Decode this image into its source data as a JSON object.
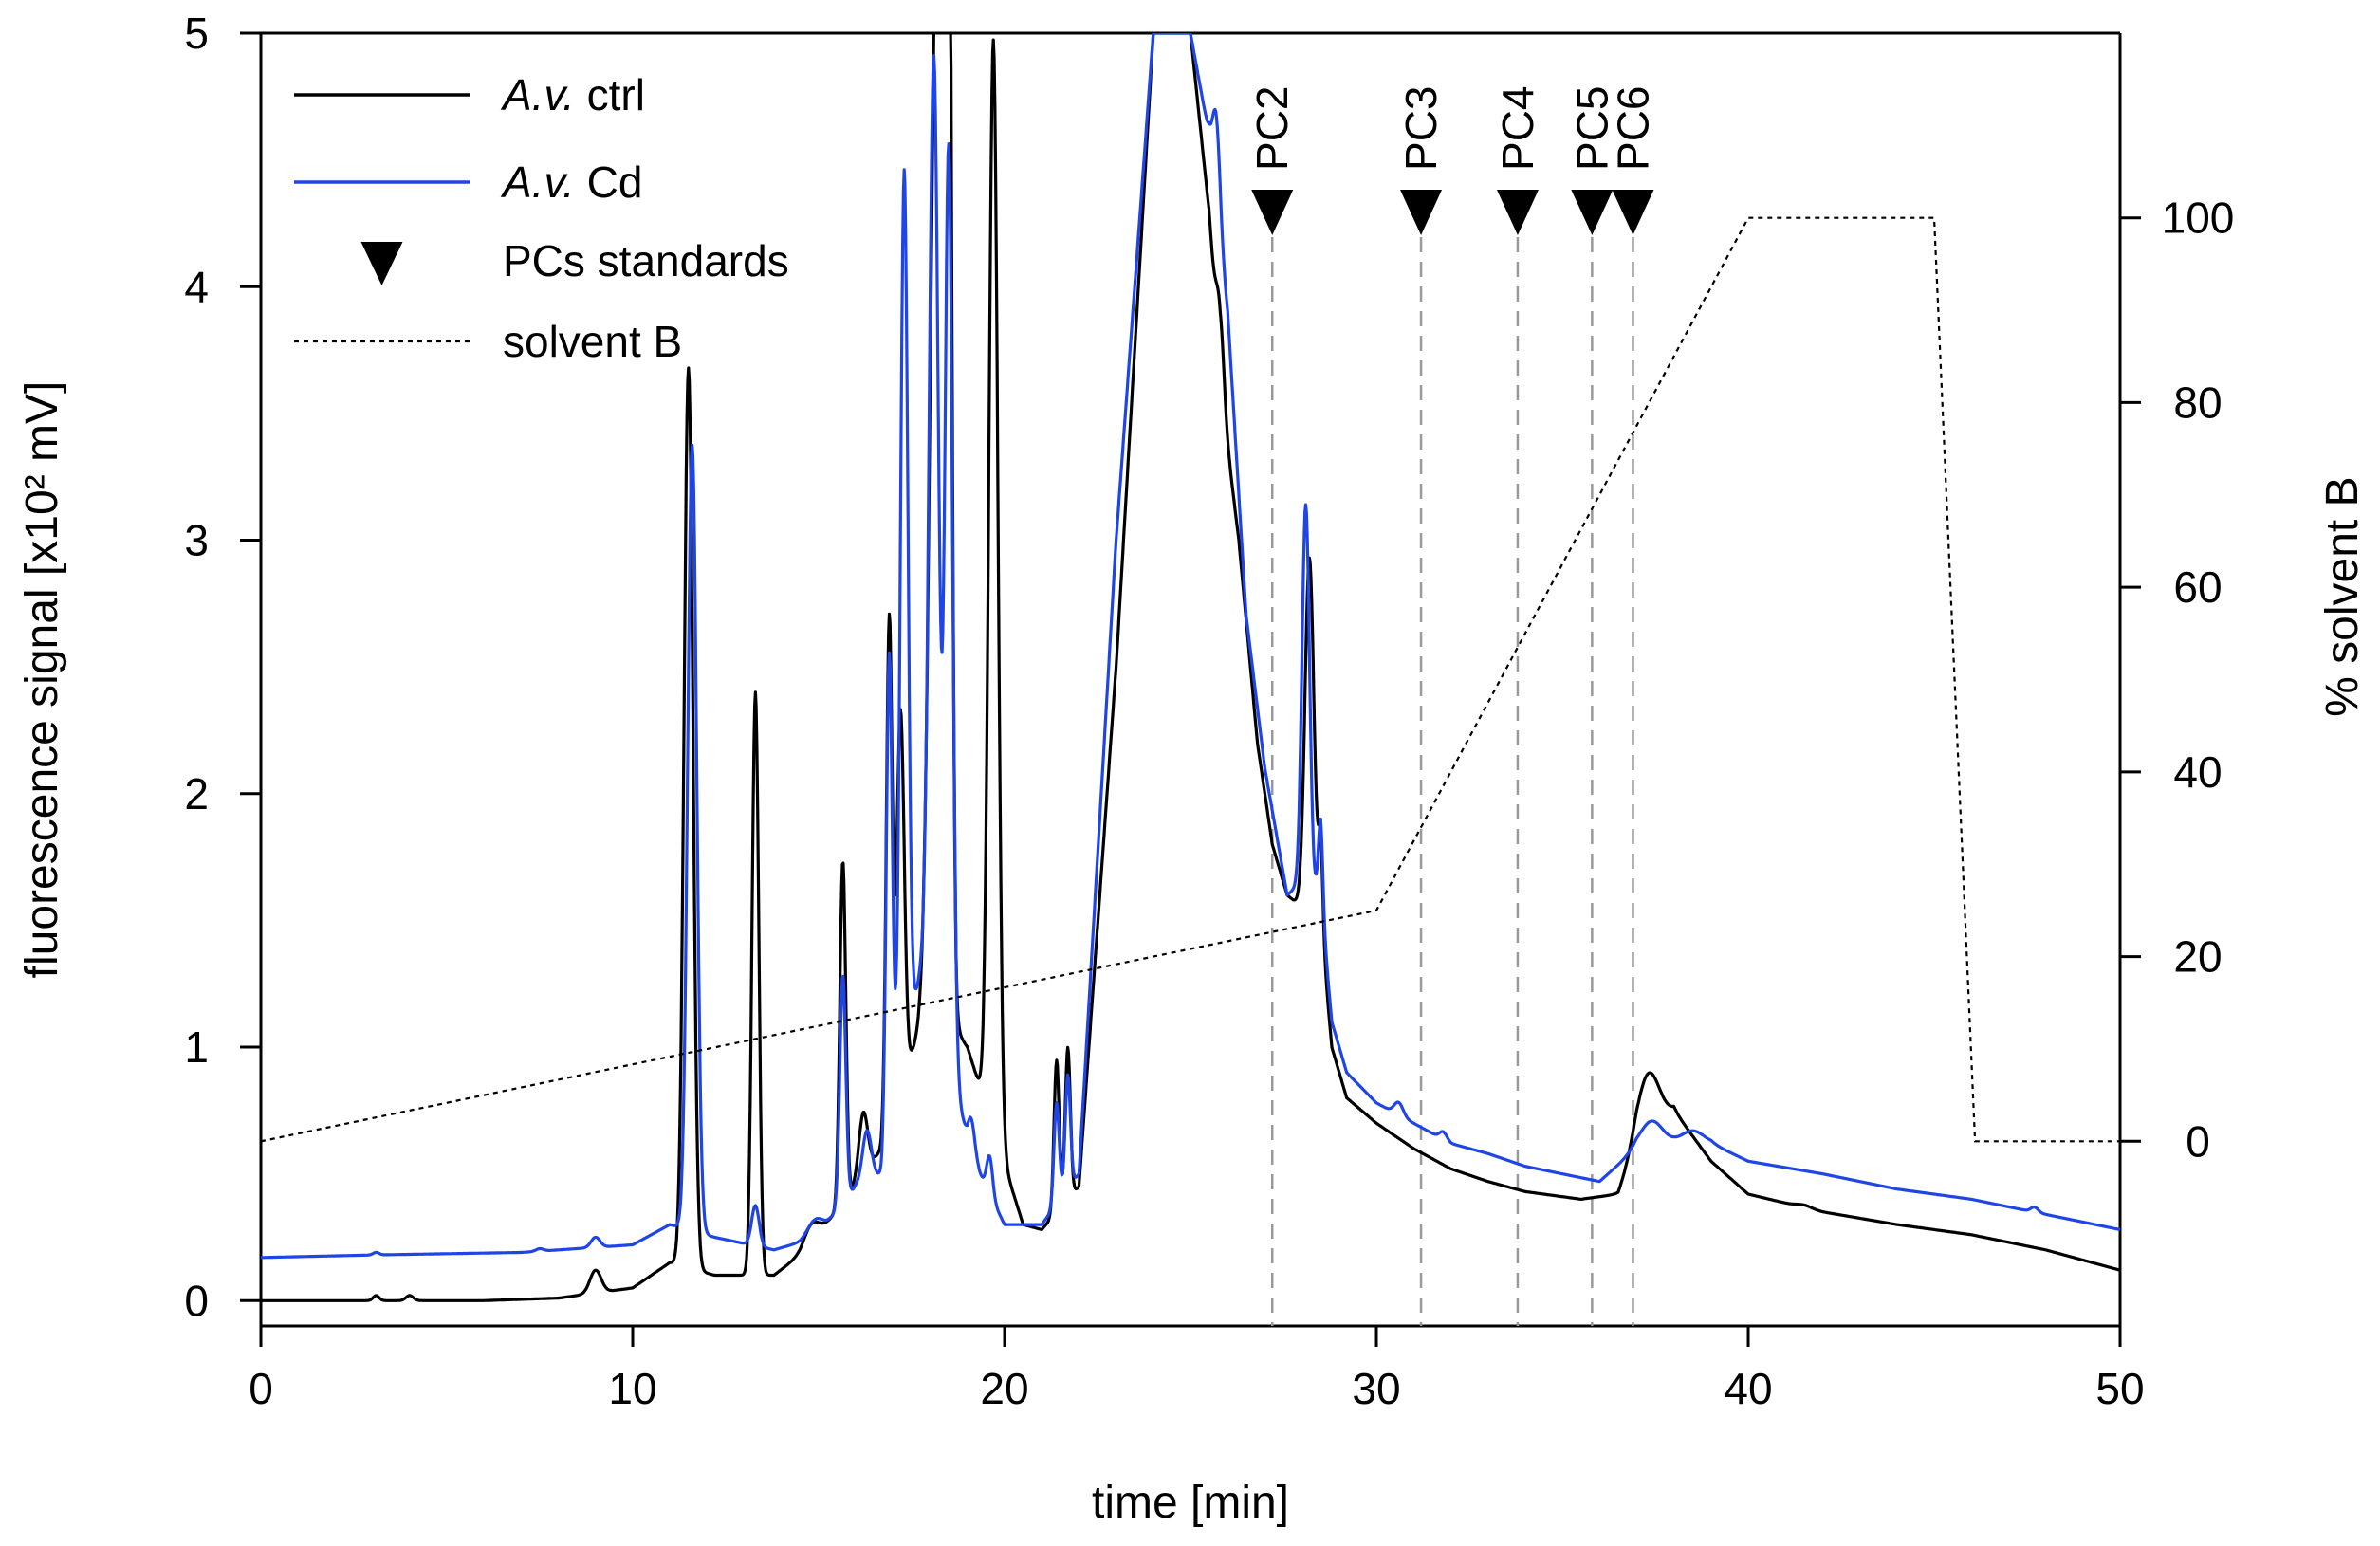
{
  "chart_data": {
    "type": "line",
    "title": "",
    "xlabel": "time [min]",
    "ylabel": "fluorescence signal [x10² mV]",
    "y2label": "% solvent B",
    "xlim": [
      0,
      50
    ],
    "ylim": [
      -0.1,
      5
    ],
    "y2lim": [
      -20,
      120
    ],
    "x_ticks": [
      0,
      10,
      20,
      30,
      40,
      50
    ],
    "y_ticks": [
      0,
      1,
      2,
      3,
      4,
      5
    ],
    "y2_ticks": [
      0,
      20,
      40,
      60,
      80,
      100
    ],
    "legend": {
      "placement": "top-left",
      "entries": [
        {
          "label_italic": "A.v.",
          "label_rest": " ctrl",
          "style": "line",
          "color": "#000000"
        },
        {
          "label_italic": "A.v.",
          "label_rest": " Cd",
          "style": "line",
          "color": "#1f45e6"
        },
        {
          "label_italic": "",
          "label_rest": "PCs standards",
          "style": "triangle",
          "color": "#000000"
        },
        {
          "label_italic": "",
          "label_rest": "solvent B",
          "style": "dotted",
          "color": "#000000"
        }
      ]
    },
    "pc_standards": [
      {
        "label": "PC2",
        "time": 27.2
      },
      {
        "label": "PC3",
        "time": 31.2
      },
      {
        "label": "PC4",
        "time": 33.8
      },
      {
        "label": "PC5",
        "time": 35.8
      },
      {
        "label": "PC6",
        "time": 36.9
      }
    ],
    "series": [
      {
        "name": "A.v. ctrl",
        "color": "#000000",
        "axis": "left",
        "baseline": [
          [
            0,
            0.0
          ],
          [
            3,
            0.0
          ],
          [
            6,
            0.0
          ],
          [
            8,
            0.01
          ],
          [
            10,
            0.05
          ],
          [
            11,
            0.15
          ],
          [
            12.2,
            0.1
          ],
          [
            13.8,
            0.1
          ],
          [
            14.5,
            0.18
          ],
          [
            15.2,
            0.3
          ],
          [
            16,
            0.45
          ],
          [
            16.7,
            0.6
          ],
          [
            18,
            1.2
          ],
          [
            19,
            1.0
          ],
          [
            20.5,
            0.3
          ],
          [
            21,
            0.28
          ],
          [
            22,
            0.45
          ],
          [
            23,
            2.5
          ],
          [
            24,
            5.0
          ],
          [
            25,
            5.0
          ],
          [
            25.5,
            4.3
          ],
          [
            25.8,
            3.6
          ],
          [
            26.3,
            3.0
          ],
          [
            26.8,
            2.2
          ],
          [
            27.2,
            1.8
          ],
          [
            27.6,
            1.6
          ],
          [
            28.0,
            1.55
          ],
          [
            28.5,
            1.5
          ],
          [
            28.8,
            1.0
          ],
          [
            29.2,
            0.8
          ],
          [
            30,
            0.7
          ],
          [
            31,
            0.6
          ],
          [
            32,
            0.52
          ],
          [
            33,
            0.47
          ],
          [
            34,
            0.43
          ],
          [
            35,
            0.41
          ],
          [
            35.5,
            0.4
          ],
          [
            36.5,
            0.42
          ],
          [
            37,
            0.6
          ],
          [
            38,
            0.75
          ],
          [
            39,
            0.55
          ],
          [
            40,
            0.42
          ],
          [
            42,
            0.35
          ],
          [
            44,
            0.3
          ],
          [
            46,
            0.26
          ],
          [
            48,
            0.2
          ],
          [
            50,
            0.12
          ]
        ],
        "peaks": [
          [
            3.1,
            0.02,
            0.08
          ],
          [
            4.0,
            0.02,
            0.1
          ],
          [
            9.0,
            0.09,
            0.15
          ],
          [
            11.5,
            3.55,
            0.12
          ],
          [
            13.3,
            2.3,
            0.09
          ],
          [
            14.8,
            0.07,
            0.2
          ],
          [
            15.65,
            1.35,
            0.08
          ],
          [
            16.2,
            0.25,
            0.12
          ],
          [
            16.9,
            2.0,
            0.08
          ],
          [
            17.2,
            1.5,
            0.1
          ],
          [
            18.2,
            4.5,
            0.18
          ],
          [
            18.5,
            4.2,
            0.08
          ],
          [
            19.7,
            4.3,
            0.12
          ],
          [
            21.4,
            0.6,
            0.07
          ],
          [
            21.7,
            0.6,
            0.07
          ],
          [
            25.8,
            0.3,
            0.1
          ],
          [
            28.2,
            1.4,
            0.12
          ],
          [
            28.5,
            0.3,
            0.06
          ],
          [
            37.3,
            0.25,
            0.3
          ],
          [
            41.5,
            0.01,
            0.2
          ]
        ]
      },
      {
        "name": "A.v. Cd",
        "color": "#1f45e6",
        "axis": "left",
        "baseline": [
          [
            0,
            0.17
          ],
          [
            3,
            0.18
          ],
          [
            7,
            0.19
          ],
          [
            10,
            0.22
          ],
          [
            11,
            0.3
          ],
          [
            12.2,
            0.25
          ],
          [
            13.8,
            0.2
          ],
          [
            14.5,
            0.23
          ],
          [
            15.2,
            0.3
          ],
          [
            16,
            0.45
          ],
          [
            16.7,
            0.5
          ],
          [
            18,
            1.5
          ],
          [
            19,
            0.6
          ],
          [
            20,
            0.3
          ],
          [
            21,
            0.3
          ],
          [
            22,
            0.5
          ],
          [
            23,
            3.0
          ],
          [
            24,
            5.0
          ],
          [
            25,
            5.0
          ],
          [
            25.5,
            4.6
          ],
          [
            26,
            3.9
          ],
          [
            26.5,
            2.7
          ],
          [
            27.0,
            2.1
          ],
          [
            27.6,
            1.6
          ],
          [
            28.0,
            1.65
          ],
          [
            28.5,
            1.6
          ],
          [
            28.8,
            1.1
          ],
          [
            29.2,
            0.9
          ],
          [
            30,
            0.78
          ],
          [
            31,
            0.7
          ],
          [
            32,
            0.62
          ],
          [
            33,
            0.58
          ],
          [
            34,
            0.53
          ],
          [
            35,
            0.5
          ],
          [
            36,
            0.47
          ],
          [
            37,
            0.6
          ],
          [
            38,
            0.62
          ],
          [
            39,
            0.62
          ],
          [
            40,
            0.55
          ],
          [
            42,
            0.5
          ],
          [
            44,
            0.44
          ],
          [
            46,
            0.4
          ],
          [
            48,
            0.34
          ],
          [
            50,
            0.28
          ]
        ],
        "peaks": [
          [
            3.1,
            0.01,
            0.08
          ],
          [
            7.5,
            0.01,
            0.1
          ],
          [
            9.0,
            0.04,
            0.12
          ],
          [
            11.6,
            3.1,
            0.12
          ],
          [
            13.3,
            0.16,
            0.1
          ],
          [
            14.9,
            0.05,
            0.2
          ],
          [
            15.65,
            0.9,
            0.08
          ],
          [
            16.3,
            0.2,
            0.12
          ],
          [
            16.9,
            1.9,
            0.08
          ],
          [
            17.3,
            3.5,
            0.1
          ],
          [
            18.1,
            3.5,
            0.12
          ],
          [
            18.5,
            3.5,
            0.1
          ],
          [
            19.1,
            0.15,
            0.1
          ],
          [
            19.6,
            0.15,
            0.08
          ],
          [
            21.4,
            0.4,
            0.07
          ],
          [
            21.7,
            0.45,
            0.07
          ],
          [
            25.7,
            0.35,
            0.1
          ],
          [
            28.1,
            1.5,
            0.1
          ],
          [
            28.5,
            0.3,
            0.06
          ],
          [
            30.6,
            0.05,
            0.12
          ],
          [
            31.8,
            0.03,
            0.1
          ],
          [
            37.4,
            0.1,
            0.3
          ],
          [
            38.5,
            0.05,
            0.3
          ],
          [
            47.7,
            0.02,
            0.1
          ]
        ]
      },
      {
        "name": "solvent B",
        "color": "#000000",
        "axis": "right",
        "style": "dotted",
        "points": [
          [
            0,
            0
          ],
          [
            30,
            25
          ],
          [
            40,
            100
          ],
          [
            45,
            100
          ],
          [
            46.1,
            0
          ],
          [
            50,
            0
          ]
        ]
      }
    ]
  }
}
